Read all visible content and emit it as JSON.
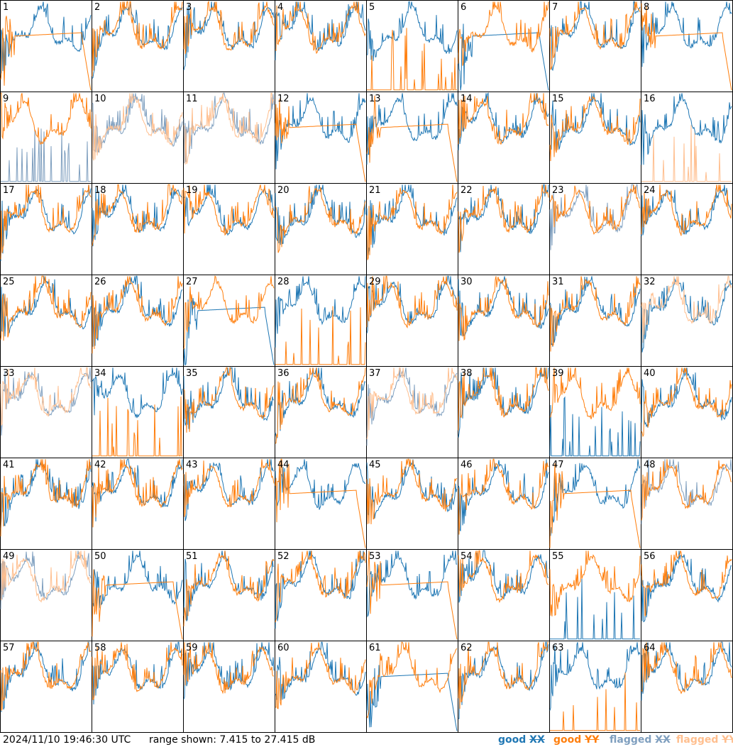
{
  "chart_data": {
    "type": "line",
    "panels": [
      "1",
      "2",
      "3",
      "4",
      "5",
      "6",
      "7",
      "8",
      "9",
      "10",
      "11",
      "12",
      "13",
      "14",
      "15",
      "16",
      "17",
      "18",
      "19",
      "20",
      "21",
      "22",
      "23",
      "24",
      "25",
      "26",
      "27",
      "28",
      "29",
      "30",
      "31",
      "32",
      "33",
      "34",
      "35",
      "36",
      "37",
      "38",
      "39",
      "40",
      "41",
      "42",
      "43",
      "44",
      "45",
      "46",
      "47",
      "48",
      "49",
      "50",
      "51",
      "52",
      "53",
      "54",
      "55",
      "56",
      "57",
      "58",
      "59",
      "60",
      "61",
      "62",
      "63",
      "64"
    ],
    "layout": "8x8 grid",
    "ylim": [
      7.415,
      27.415
    ],
    "yunit": "dB",
    "legend_placement": "bottom-right",
    "colors": {
      "good_xx": "#1f77b4",
      "good_yy": "#ff7f0e",
      "flagged_xx": "#7f9fbf",
      "flagged_yy": "#ffbf8f"
    },
    "flagged": {
      "xx": [
        "9",
        "10",
        "11",
        "23",
        "33",
        "37",
        "48",
        "49"
      ],
      "yy": [
        "10",
        "11",
        "16",
        "32",
        "33",
        "37",
        "49"
      ]
    },
    "anomalous": {
      "flat_rolloff_yy": [
        "1",
        "8",
        "12",
        "13",
        "44",
        "47",
        "50",
        "53"
      ],
      "flat_rolloff_xx": [
        "6",
        "27",
        "61"
      ],
      "spiky_sparse_yy": [
        "5",
        "16",
        "28",
        "34",
        "63"
      ],
      "spiky_sparse_xx": [
        "9",
        "39",
        "55"
      ],
      "partial_xx": [
        "55"
      ]
    }
  },
  "footer": {
    "timestamp": "2024/11/10 19:46:30 UTC",
    "range": "range shown: 7.415 to 27.415 dB",
    "legend": {
      "good_xx_word": "good ",
      "good_xx_pol": "XX",
      "good_yy_word": "good ",
      "good_yy_pol": "YY",
      "flagged_xx_word": "flagged ",
      "flagged_xx_pol": "XX",
      "flagged_yy_word": "flagged ",
      "flagged_yy_pol": "YY"
    }
  }
}
